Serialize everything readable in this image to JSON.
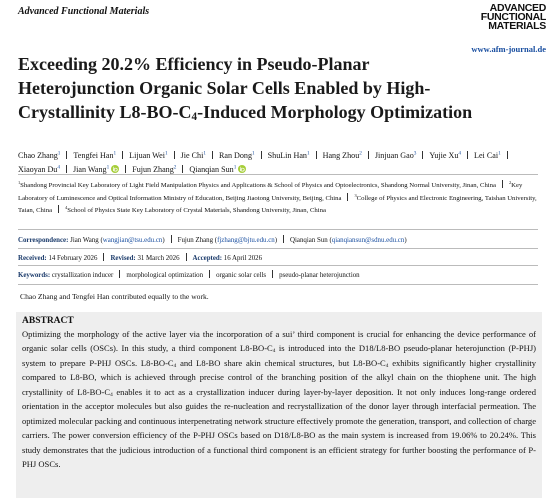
{
  "header": {
    "journal": "Advanced Functional Materials",
    "logo": [
      "ADVANCED",
      "FUNCTIONAL",
      "MATERIALS"
    ],
    "url": "www.afm-journal.de"
  },
  "title": [
    {
      "text": "Exceeding 20.2% Efficiency in Pseudo-Planar Heterojunction Organic Solar Cells Enabled by High-Crystallinity L8-BO-C"
    },
    {
      "text": "4",
      "sub": true
    },
    {
      "text": "-Induced Morphology Optimization"
    }
  ],
  "authors": [
    {
      "name": "Chao Zhang",
      "aff": "1"
    },
    {
      "name": "Tengfei Han",
      "aff": "1"
    },
    {
      "name": "Lijuan Wei",
      "aff": "1"
    },
    {
      "name": "Jie Chi",
      "aff": "1"
    },
    {
      "name": "Ran Dong",
      "aff": "1"
    },
    {
      "name": "ShuLin Han",
      "aff": "1"
    },
    {
      "name": "Hang Zhou",
      "aff": "2"
    },
    {
      "name": "Jinjuan Gao",
      "aff": "3"
    },
    {
      "name": "Yujie Xu",
      "aff": "4"
    },
    {
      "name": "Lei Cai",
      "aff": "1"
    },
    {
      "name": "Xiaoyan Du",
      "aff": "4"
    },
    {
      "name": "Jian Wang",
      "aff": "1",
      "orcid": true
    },
    {
      "name": "Fujun Zhang",
      "aff": "2"
    },
    {
      "name": "Qianqian Sun",
      "aff": "1",
      "orcid": true
    }
  ],
  "affiliations": [
    {
      "num": "1",
      "text": "Shandong Provincial Key Laboratory of Light Field Manipulation Physics and Applications & School of Physics and Optoelectronics, Shandong Normal University, Jinan, China"
    },
    {
      "num": "2",
      "text": "Key Laboratory of Luminescence and Optical Information Ministry of Education, Beijing Jiaotong University, Beijing, China"
    },
    {
      "num": "3",
      "text": "College of Physics and Electronic Engineering, Taishan University, Taian, China"
    },
    {
      "num": "4",
      "text": "School of Physics State Key Laboratory of Crystal Materials, Shandong University, Jinan, China"
    }
  ],
  "correspondence": {
    "label": "Correspondence:",
    "entries": [
      {
        "name": "Jian Wang",
        "email": "wangjian@tsu.edu.cn"
      },
      {
        "name": "Fujun Zhang",
        "email": "fjzhang@bjtu.edu.cn"
      },
      {
        "name": "Qianqian Sun",
        "email": "qianqiansun@sdnu.edu.cn"
      }
    ]
  },
  "dates": [
    {
      "label": "Received:",
      "value": "14 February 2026"
    },
    {
      "label": "Revised:",
      "value": "31 March 2026"
    },
    {
      "label": "Accepted:",
      "value": "16 April 2026"
    }
  ],
  "keywords": {
    "label": "Keywords:",
    "items": [
      "crystallization inducer",
      "morphological optimization",
      "organic solar cells",
      "pseudo-planar heterojunction"
    ]
  },
  "note": "Chao Zhang and Tengfei Han contributed equally to the work.",
  "abstract": {
    "heading": "ABSTRACT",
    "segments": [
      {
        "text": "Optimizing the morphology of the active layer via the incorporation of a sui’ third component is crucial for enhancing the device performance of organic solar cells (OSCs). In this study, a third component L8-BO-C"
      },
      {
        "text": "4",
        "sub": true
      },
      {
        "text": " is introduced into the D18/L8-BO pseudo-planar heterojunction (P-PHJ) system to prepare P-PHJ OSCs. L8-BO-C"
      },
      {
        "text": "4",
        "sub": true
      },
      {
        "text": " and L8-BO share akin chemical structures, but L8-BO-C"
      },
      {
        "text": "4",
        "sub": true
      },
      {
        "text": " exhibits significantly higher crystallinity compared to L8-BO, which is achieved through precise control of the branching position of the alkyl chain on the thiophene unit. The high crystallinity of L8-BO-C"
      },
      {
        "text": "4",
        "sub": true
      },
      {
        "text": " enables it to act as a crystallization inducer during layer-by-layer deposition. It not only induces long-range ordered orientation in the acceptor molecules but also guides the re-nucleation and recrystallization of the donor layer through interfacial permeation. The optimized molecular packing and continuous interpenetrating network structure effectively promote the generation, transport, and collection of charge carriers. The power conversion efficiency of the P-PHJ OSCs based on D18/L8-BO as the main system is increased from 19.06% to 20.24%. This study demonstrates that the judicious introduction of a functional third component is an efficient strategy for further boosting the performance of P-PHJ OSCs."
      }
    ]
  }
}
